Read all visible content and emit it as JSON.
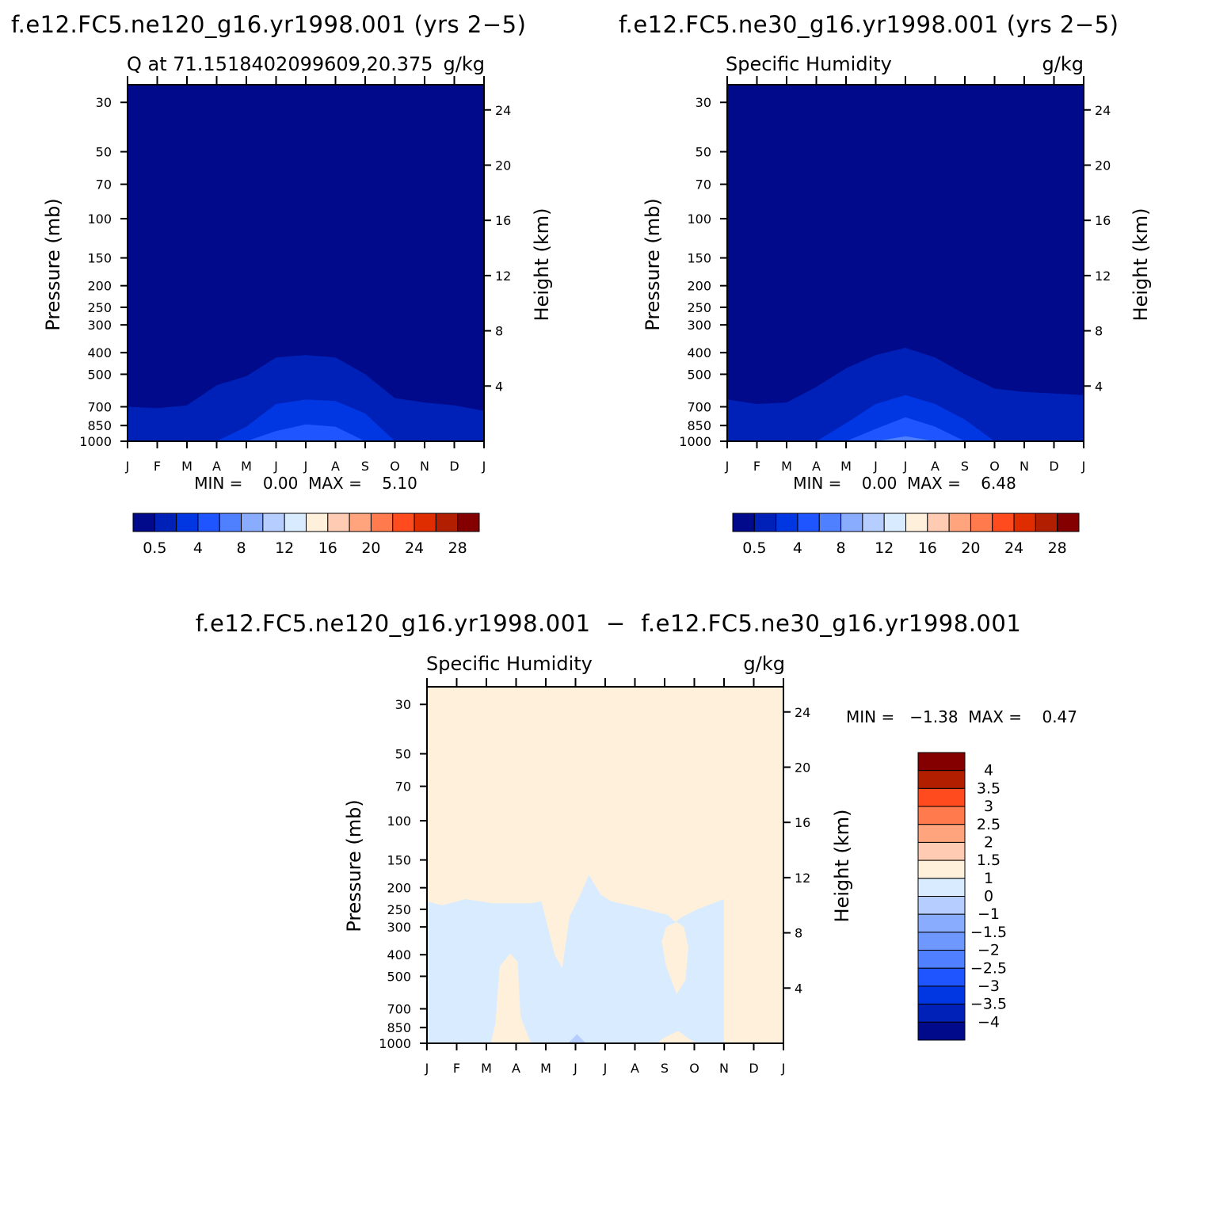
{
  "figure": {
    "panel_top_left": {
      "header": "f.e12.FC5.ne120_g16.yr1998.001 (yrs 2−5)",
      "left_title": "Q at 71.1518402099609,20.375",
      "right_title": "g/kg",
      "ylabel": "Pressure (mb)",
      "y2label": "Height (km)",
      "minmax": "MIN =    0.00  MAX =    5.10"
    },
    "panel_top_right": {
      "header": "f.e12.FC5.ne30_g16.yr1998.001 (yrs 2−5)",
      "left_title": "Specific Humidity",
      "right_title": "g/kg",
      "ylabel": "Pressure (mb)",
      "y2label": "Height (km)",
      "minmax": "MIN =    0.00  MAX =    6.48"
    },
    "panel_bottom": {
      "header": "f.e12.FC5.ne120_g16.yr1998.001  −  f.e12.FC5.ne30_g16.yr1998.001",
      "left_title": "Specific Humidity",
      "right_title": "g/kg",
      "ylabel": "Pressure (mb)",
      "y2label": "Height (km)",
      "minmax": "MIN =   −1.38  MAX =    0.47"
    }
  },
  "chart_data": [
    {
      "type": "heatmap",
      "id": "ne120",
      "title": "Q at 71.1518402099609,20.375",
      "units": "g/kg",
      "xlabel": "",
      "ylabel": "Pressure (mb)",
      "y2label": "Height (km)",
      "x_ticks": [
        "J",
        "F",
        "M",
        "A",
        "M",
        "J",
        "J",
        "A",
        "S",
        "O",
        "N",
        "D",
        "J"
      ],
      "y_ticks": [
        30,
        50,
        70,
        100,
        150,
        200,
        250,
        300,
        400,
        500,
        700,
        850,
        1000
      ],
      "y_range": [
        1000,
        25
      ],
      "y_scale": "log",
      "y2_ticks": [
        4,
        8,
        12,
        16,
        20,
        24
      ],
      "min": 0.0,
      "max": 5.1,
      "colorbar": {
        "orientation": "horizontal",
        "colors": [
          "#000a8a",
          "#0021b8",
          "#0037e3",
          "#1f55ff",
          "#4f80ff",
          "#8aacff",
          "#b5cdff",
          "#d9ebff",
          "#fff0dc",
          "#ffcbb2",
          "#ffa47c",
          "#ff7a4c",
          "#ff4b1e",
          "#e02d00",
          "#b21f00",
          "#840000"
        ],
        "labels": [
          "0.5",
          "4",
          "8",
          "12",
          "16",
          "20",
          "24",
          "28"
        ]
      },
      "contours": [
        {
          "level": 0.5,
          "color": "#0021b8",
          "top_pressure": [
            700,
            710,
            690,
            560,
            510,
            420,
            410,
            420,
            500,
            640,
            670,
            690,
            730
          ]
        },
        {
          "level": 1,
          "color": "#0037e3",
          "top_pressure": [
            1000,
            1000,
            1000,
            1000,
            860,
            680,
            650,
            660,
            750,
            1000,
            1000,
            1000,
            1000
          ]
        },
        {
          "level": 2,
          "color": "#1f55ff",
          "top_pressure": [
            1000,
            1000,
            1000,
            1000,
            1000,
            900,
            840,
            860,
            1000,
            1000,
            1000,
            1000,
            1000
          ]
        }
      ]
    },
    {
      "type": "heatmap",
      "id": "ne30",
      "title": "Specific Humidity",
      "units": "g/kg",
      "xlabel": "",
      "ylabel": "Pressure (mb)",
      "y2label": "Height (km)",
      "x_ticks": [
        "J",
        "F",
        "M",
        "A",
        "M",
        "J",
        "J",
        "A",
        "S",
        "O",
        "N",
        "D",
        "J"
      ],
      "y_ticks": [
        30,
        50,
        70,
        100,
        150,
        200,
        250,
        300,
        400,
        500,
        700,
        850,
        1000
      ],
      "y_range": [
        1000,
        25
      ],
      "y_scale": "log",
      "y2_ticks": [
        4,
        8,
        12,
        16,
        20,
        24
      ],
      "min": 0.0,
      "max": 6.48,
      "colorbar": {
        "orientation": "horizontal",
        "colors": [
          "#000a8a",
          "#0021b8",
          "#0037e3",
          "#1f55ff",
          "#4f80ff",
          "#8aacff",
          "#b5cdff",
          "#d9ebff",
          "#fff0dc",
          "#ffcbb2",
          "#ffa47c",
          "#ff7a4c",
          "#ff4b1e",
          "#e02d00",
          "#b21f00",
          "#840000"
        ],
        "labels": [
          "0.5",
          "4",
          "8",
          "12",
          "16",
          "20",
          "24",
          "28"
        ]
      },
      "contours": [
        {
          "level": 0.5,
          "color": "#0021b8",
          "top_pressure": [
            650,
            680,
            670,
            570,
            470,
            410,
            380,
            420,
            500,
            580,
            600,
            610,
            620
          ]
        },
        {
          "level": 1,
          "color": "#0037e3",
          "top_pressure": [
            1000,
            1000,
            1000,
            1000,
            830,
            680,
            620,
            680,
            800,
            1000,
            1000,
            1000,
            1000
          ]
        },
        {
          "level": 2,
          "color": "#1f55ff",
          "top_pressure": [
            1000,
            1000,
            1000,
            1000,
            1000,
            880,
            780,
            860,
            1000,
            1000,
            1000,
            1000,
            1000
          ]
        },
        {
          "level": 3,
          "color": "#4f80ff",
          "top_pressure": [
            1000,
            1000,
            1000,
            1000,
            1000,
            1000,
            950,
            1000,
            1000,
            1000,
            1000,
            1000,
            1000
          ]
        }
      ]
    },
    {
      "type": "heatmap",
      "id": "diff",
      "title": "Specific Humidity",
      "units": "g/kg",
      "xlabel": "",
      "ylabel": "Pressure (mb)",
      "y2label": "Height (km)",
      "x_ticks": [
        "J",
        "F",
        "M",
        "A",
        "M",
        "J",
        "J",
        "A",
        "S",
        "O",
        "N",
        "D",
        "J"
      ],
      "y_ticks": [
        30,
        50,
        70,
        100,
        150,
        200,
        250,
        300,
        400,
        500,
        700,
        850,
        1000
      ],
      "y_range": [
        1000,
        25
      ],
      "y_scale": "log",
      "y2_ticks": [
        4,
        8,
        12,
        16,
        20,
        24
      ],
      "min": -1.38,
      "max": 0.47,
      "background_color": "#fff0dc",
      "colorbar": {
        "orientation": "vertical",
        "colors": [
          "#000a8a",
          "#0021b8",
          "#0037e3",
          "#1f55ff",
          "#4f80ff",
          "#6f98ff",
          "#8aacff",
          "#b5cdff",
          "#d9ebff",
          "#fff0dc",
          "#ffcbb2",
          "#ffa47c",
          "#ff7a4c",
          "#ff4b1e",
          "#b21f00",
          "#840000"
        ],
        "labels": [
          "−4",
          "−3.5",
          "−3",
          "−2.5",
          "−2",
          "−1.5",
          "−1",
          "0",
          "1",
          "1.5",
          "2",
          "2.5",
          "3",
          "3.5",
          "4"
        ]
      },
      "regions": [
        {
          "color": "#d9ebff",
          "polygon": [
            [
              0,
              230
            ],
            [
              0.5,
              240
            ],
            [
              1.3,
              225
            ],
            [
              2.2,
              235
            ],
            [
              3.5,
              235
            ],
            [
              3.85,
              230
            ],
            [
              4.3,
              400
            ],
            [
              4.55,
              460
            ],
            [
              4.8,
              270
            ],
            [
              5.2,
              210
            ],
            [
              5.45,
              175
            ],
            [
              5.85,
              215
            ],
            [
              6.2,
              230
            ],
            [
              7.1,
              245
            ],
            [
              8.1,
              265
            ],
            [
              8.35,
              285
            ],
            [
              8.6,
              270
            ],
            [
              9.1,
              250
            ],
            [
              10,
              225
            ],
            [
              10,
              1000
            ],
            [
              0,
              1000
            ]
          ]
        },
        {
          "color": "#fff0dc",
          "polygon": [
            [
              2.45,
              450
            ],
            [
              2.8,
              395
            ],
            [
              3.05,
              430
            ],
            [
              3.15,
              760
            ],
            [
              3.5,
              1000
            ],
            [
              2.15,
              1000
            ],
            [
              2.3,
              820
            ]
          ]
        },
        {
          "color": "#fff0dc",
          "polygon": [
            [
              8.05,
              300
            ],
            [
              8.4,
              285
            ],
            [
              8.65,
              300
            ],
            [
              8.8,
              370
            ],
            [
              8.7,
              520
            ],
            [
              8.4,
              600
            ],
            [
              8.05,
              450
            ],
            [
              7.9,
              350
            ]
          ]
        },
        {
          "color": "#fff0dc",
          "polygon": [
            [
              7.95,
              950
            ],
            [
              8.45,
              880
            ],
            [
              8.8,
              950
            ],
            [
              9.05,
              1000
            ],
            [
              7.75,
              1000
            ]
          ]
        },
        {
          "color": "#b5cdff",
          "polygon": [
            [
              4.75,
              1000
            ],
            [
              5.05,
              910
            ],
            [
              5.35,
              1000
            ]
          ]
        }
      ]
    }
  ]
}
